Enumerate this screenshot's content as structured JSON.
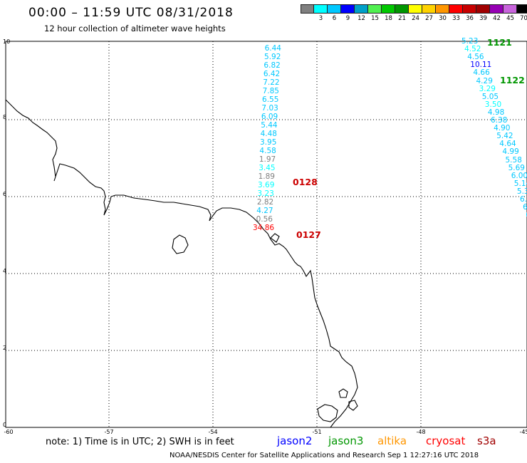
{
  "header": {
    "title": "00:00 – 11:59 UTC 08/31/2018",
    "subtitle": "12 hour collection of altimeter wave heights"
  },
  "legend": {
    "unit": "(ft)",
    "items": [
      {
        "label": "",
        "color": "#808080"
      },
      {
        "label": "3",
        "color": "#00ffff"
      },
      {
        "label": "6",
        "color": "#00c8ff"
      },
      {
        "label": "9",
        "color": "#0000ff"
      },
      {
        "label": "12",
        "color": "#00a0c8"
      },
      {
        "label": "15",
        "color": "#50f050"
      },
      {
        "label": "18",
        "color": "#00c800"
      },
      {
        "label": "21",
        "color": "#009600"
      },
      {
        "label": "24",
        "color": "#ffff00"
      },
      {
        "label": "27",
        "color": "#ffd200"
      },
      {
        "label": "30",
        "color": "#ff9600"
      },
      {
        "label": "33",
        "color": "#ff0000"
      },
      {
        "label": "36",
        "color": "#c80000"
      },
      {
        "label": "39",
        "color": "#a00000"
      },
      {
        "label": "42",
        "color": "#9600b4"
      },
      {
        "label": "45",
        "color": "#c864dc"
      },
      {
        "label": "70",
        "color": "#000000"
      }
    ]
  },
  "map": {
    "lat_labels": [
      "10",
      "8",
      "6",
      "4",
      "2",
      "0"
    ],
    "lon_labels": [
      "-60",
      "-57",
      "-54",
      "-51",
      "-48",
      "-45"
    ],
    "tracks": {
      "t0128": {
        "label": "0128",
        "color": "#cc0000",
        "values": [
          "6.44",
          "5.92",
          "6.82",
          "6.42",
          "7.22",
          "7.85",
          "6.55",
          "7.03",
          "6.09",
          "5.44",
          "4.48",
          "3.95",
          "4.58",
          "1.97",
          "3.45",
          "1.89",
          "3.69",
          "3.23",
          "2.82",
          "4.27",
          "0.56",
          "34.86"
        ],
        "colors": [
          "#00c8ff",
          "#00c8ff",
          "#00c8ff",
          "#00c8ff",
          "#00c8ff",
          "#00c8ff",
          "#00c8ff",
          "#00c8ff",
          "#00c8ff",
          "#00c8ff",
          "#00c8ff",
          "#00c8ff",
          "#00c8ff",
          "#808080",
          "#00ffff",
          "#808080",
          "#00ffff",
          "#00ffff",
          "#808080",
          "#00c8ff",
          "#808080",
          "#ff0000"
        ]
      },
      "t0127": {
        "label": "0127",
        "color": "#cc0000"
      },
      "t1121": {
        "label": "1121",
        "color": "#009600",
        "values": [
          "5.23",
          "4.52",
          "4.56",
          "10.11",
          "4.66",
          "4.29",
          "3.29",
          "5.05",
          "3.50",
          "4.98",
          "6.38",
          "4.90",
          "5.42",
          "4.64",
          "4.99",
          "5.58",
          "5.69",
          "6.00",
          "5.14",
          "5.39",
          "6.30",
          "6.6",
          "6.",
          "7.",
          "7"
        ],
        "colors": [
          "#00c8ff",
          "#00ffff",
          "#00c8ff",
          "#0000ff",
          "#00c8ff",
          "#00c8ff",
          "#00ffff",
          "#00c8ff",
          "#00ffff",
          "#00c8ff",
          "#00c8ff",
          "#00c8ff",
          "#00c8ff",
          "#00c8ff",
          "#00c8ff",
          "#00c8ff",
          "#00c8ff",
          "#00c8ff",
          "#00c8ff",
          "#00c8ff",
          "#00c8ff",
          "#00c8ff",
          "#00c8ff",
          "#00c8ff",
          "#00c8ff"
        ]
      },
      "t1122": {
        "label": "1122",
        "color": "#009600"
      }
    }
  },
  "footer": {
    "note": "note: 1) Time is in UTC; 2) SWH is in feet",
    "satellites": [
      {
        "name": "jason2",
        "color": "#0000ff"
      },
      {
        "name": "jason3",
        "color": "#009600"
      },
      {
        "name": "altika",
        "color": "#ff9600"
      },
      {
        "name": "cryosat",
        "color": "#ff0000"
      },
      {
        "name": "s3a",
        "color": "#a00000"
      }
    ],
    "credit": "NOAA/NESDIS Center for Satellite Applications and Research   Sep  1 12:27:16 UTC 2018"
  }
}
